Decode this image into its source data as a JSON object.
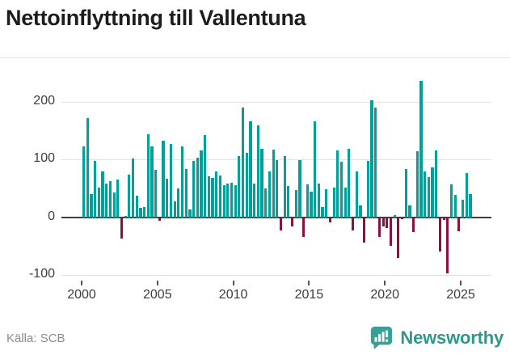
{
  "title": "Nettoinflyttning till Vallentuna",
  "source": "Källa: SCB",
  "brand": {
    "name": "Newsworthy"
  },
  "colors": {
    "positive_bar": "#00a19a",
    "negative_bar": "#8c1042",
    "brand_teal": "#2f978d",
    "axis_text": "#3d3d3d",
    "gridline": "#e2e2e2",
    "zero_line": "#3e3e3e",
    "source_text": "#8b8b8b",
    "title_text": "#1d1d1d"
  },
  "chart_data": {
    "type": "bar",
    "title": "Nettoinflyttning till Vallentuna",
    "xlabel": "",
    "ylabel": "",
    "frequency": "quarterly",
    "start_period": "2000Q1",
    "end_period": "2025Q3",
    "ylim": [
      -110,
      250
    ],
    "grid": true,
    "y_ticks": [
      200,
      100,
      0,
      -100
    ],
    "x_tick_labels": [
      "2000",
      "2005",
      "2010",
      "2015",
      "2020",
      "2025"
    ],
    "series": [
      {
        "name": "Nettoinflyttning",
        "values": [
          122,
          171,
          40,
          98,
          51,
          79,
          58,
          62,
          43,
          65,
          -36,
          2,
          74,
          102,
          37,
          16,
          18,
          143,
          123,
          82,
          -5,
          133,
          67,
          127,
          27,
          50,
          123,
          83,
          13,
          98,
          103,
          116,
          142,
          71,
          68,
          79,
          73,
          55,
          58,
          60,
          55,
          106,
          190,
          111,
          166,
          59,
          159,
          118,
          50,
          80,
          117,
          99,
          -21,
          106,
          54,
          -14,
          47,
          99,
          -33,
          57,
          45,
          166,
          58,
          18,
          48,
          -7,
          52,
          115,
          96,
          52,
          118,
          -21,
          79,
          21,
          -42,
          97,
          203,
          190,
          -33,
          -15,
          -17,
          -48,
          4,
          -69,
          -2,
          83,
          20,
          -24,
          114,
          236,
          79,
          70,
          87,
          115,
          -58,
          -3,
          -96,
          57,
          39,
          -23,
          31,
          77,
          40
        ]
      }
    ]
  }
}
